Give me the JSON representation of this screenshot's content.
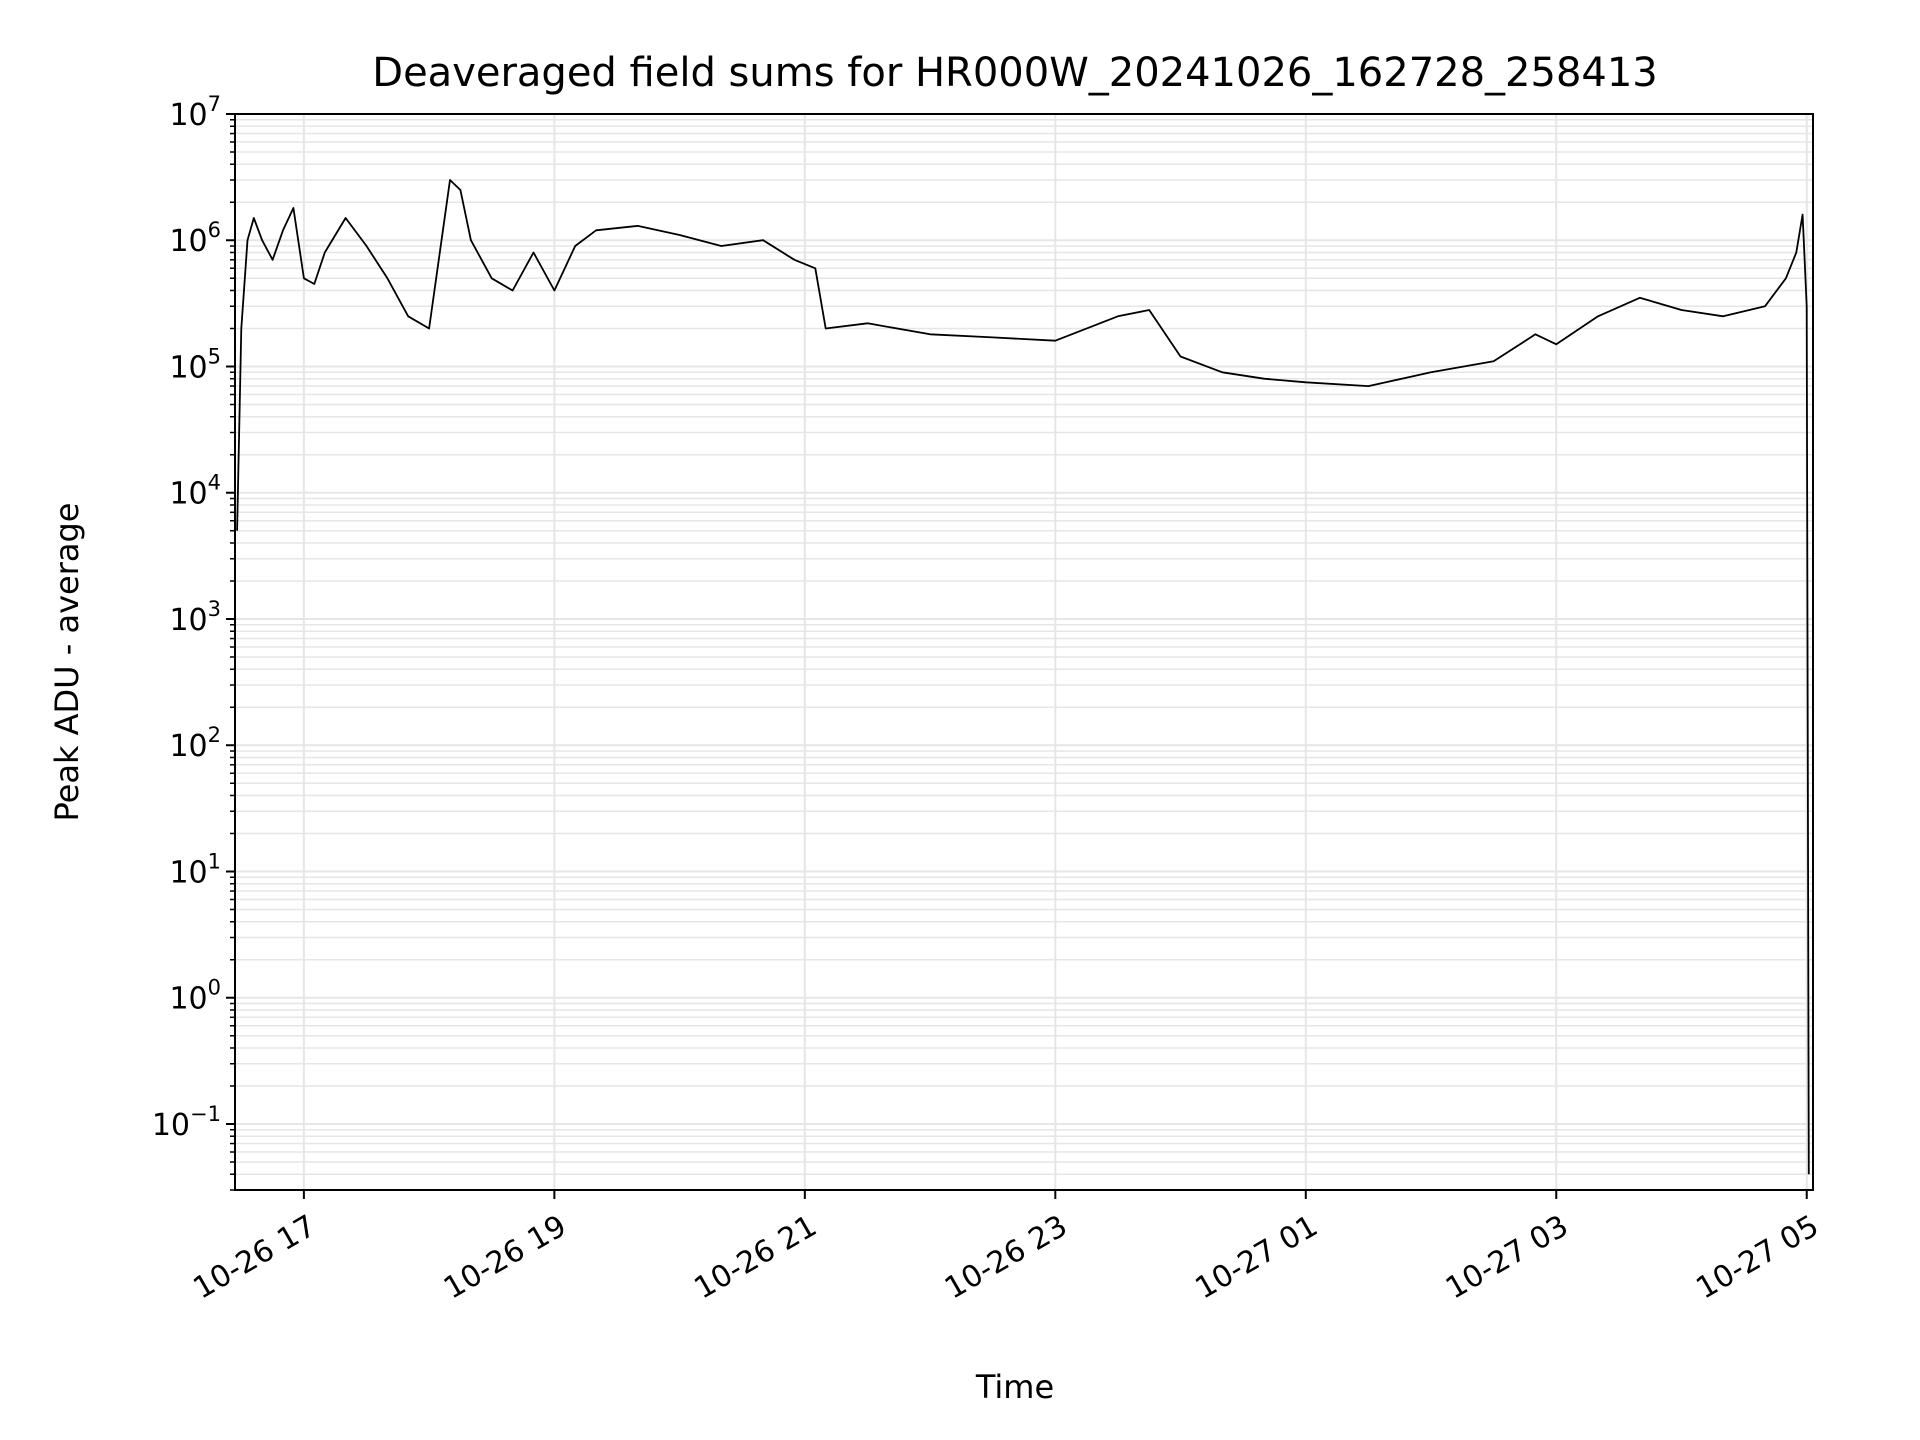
{
  "chart_data": {
    "type": "line",
    "title": "Deaveraged field sums for HR000W_20241026_162728_258413",
    "xlabel": "Time",
    "ylabel": "Peak ADU - average",
    "yscale": "log",
    "ylim": [
      0.03,
      10000000
    ],
    "xlim": [
      "2024-10-26 16:27",
      "2024-10-27 05:03"
    ],
    "grid": true,
    "line_color": "#000000",
    "grid_color": "#e6e6e6",
    "x_ticks": [
      {
        "value": "2024-10-26 17:00",
        "label": "10-26 17"
      },
      {
        "value": "2024-10-26 19:00",
        "label": "10-26 19"
      },
      {
        "value": "2024-10-26 21:00",
        "label": "10-26 21"
      },
      {
        "value": "2024-10-26 23:00",
        "label": "10-26 23"
      },
      {
        "value": "2024-10-27 01:00",
        "label": "10-27 01"
      },
      {
        "value": "2024-10-27 03:00",
        "label": "10-27 03"
      },
      {
        "value": "2024-10-27 05:00",
        "label": "10-27 05"
      }
    ],
    "y_ticks": [
      {
        "value": 0.1,
        "base": "10",
        "exp": "−1"
      },
      {
        "value": 1,
        "base": "10",
        "exp": "0"
      },
      {
        "value": 10,
        "base": "10",
        "exp": "1"
      },
      {
        "value": 100,
        "base": "10",
        "exp": "2"
      },
      {
        "value": 1000,
        "base": "10",
        "exp": "3"
      },
      {
        "value": 10000,
        "base": "10",
        "exp": "4"
      },
      {
        "value": 100000,
        "base": "10",
        "exp": "5"
      },
      {
        "value": 1000000,
        "base": "10",
        "exp": "6"
      },
      {
        "value": 10000000,
        "base": "10",
        "exp": "7"
      }
    ],
    "series": [
      {
        "x": [
          "2024-10-26 16:28",
          "2024-10-26 16:30",
          "2024-10-26 16:33",
          "2024-10-26 16:36",
          "2024-10-26 16:40",
          "2024-10-26 16:45",
          "2024-10-26 16:50",
          "2024-10-26 16:55",
          "2024-10-26 17:00",
          "2024-10-26 17:05",
          "2024-10-26 17:10",
          "2024-10-26 17:20",
          "2024-10-26 17:30",
          "2024-10-26 17:40",
          "2024-10-26 17:50",
          "2024-10-26 18:00",
          "2024-10-26 18:10",
          "2024-10-26 18:15",
          "2024-10-26 18:20",
          "2024-10-26 18:30",
          "2024-10-26 18:40",
          "2024-10-26 18:50",
          "2024-10-26 19:00",
          "2024-10-26 19:10",
          "2024-10-26 19:20",
          "2024-10-26 19:40",
          "2024-10-26 20:00",
          "2024-10-26 20:20",
          "2024-10-26 20:40",
          "2024-10-26 20:55",
          "2024-10-26 21:05",
          "2024-10-26 21:10",
          "2024-10-26 21:30",
          "2024-10-26 22:00",
          "2024-10-26 22:30",
          "2024-10-26 23:00",
          "2024-10-26 23:30",
          "2024-10-26 23:45",
          "2024-10-27 00:00",
          "2024-10-27 00:20",
          "2024-10-27 00:40",
          "2024-10-27 01:00",
          "2024-10-27 01:30",
          "2024-10-27 02:00",
          "2024-10-27 02:30",
          "2024-10-27 02:50",
          "2024-10-27 03:00",
          "2024-10-27 03:20",
          "2024-10-27 03:40",
          "2024-10-27 04:00",
          "2024-10-27 04:20",
          "2024-10-27 04:40",
          "2024-10-27 04:50",
          "2024-10-27 04:55",
          "2024-10-27 04:58",
          "2024-10-27 05:00",
          "2024-10-27 05:01"
        ],
        "y": [
          5000,
          200000,
          1000000,
          1500000,
          1000000,
          700000,
          1200000,
          1800000,
          500000,
          450000,
          800000,
          1500000,
          900000,
          500000,
          250000,
          200000,
          3000000,
          2500000,
          1000000,
          500000,
          400000,
          800000,
          400000,
          900000,
          1200000,
          1300000,
          1100000,
          900000,
          1000000,
          700000,
          600000,
          200000,
          220000,
          180000,
          170000,
          160000,
          250000,
          280000,
          120000,
          90000,
          80000,
          75000,
          70000,
          90000,
          110000,
          180000,
          150000,
          250000,
          350000,
          280000,
          250000,
          300000,
          500000,
          800000,
          1600000,
          300000,
          0.04
        ]
      }
    ]
  }
}
